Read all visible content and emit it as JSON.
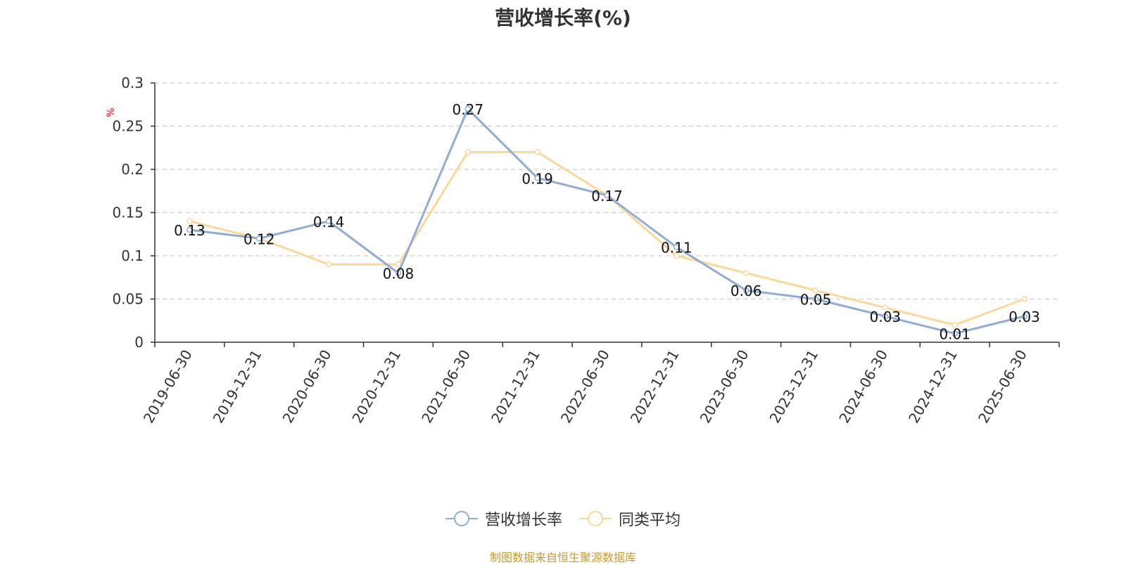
{
  "chart_data": {
    "type": "line",
    "title": "营收增长率(%)",
    "ylabel": "%",
    "ylim": [
      0,
      0.3
    ],
    "yticks": [
      "0",
      "0.05",
      "0.1",
      "0.15",
      "0.2",
      "0.25",
      "0.3"
    ],
    "grid": true,
    "categories": [
      "2019-06-30",
      "2019-12-31",
      "2020-06-30",
      "2020-12-31",
      "2021-06-30",
      "2021-12-31",
      "2022-06-30",
      "2022-12-31",
      "2023-06-30",
      "2023-12-31",
      "2024-06-30",
      "2024-12-31",
      "2025-06-30"
    ],
    "series": [
      {
        "name": "营收增长率",
        "color": "#8eacd6",
        "values": [
          0.13,
          0.12,
          0.14,
          0.08,
          0.27,
          0.19,
          0.17,
          0.11,
          0.06,
          0.05,
          0.03,
          0.01,
          0.03
        ],
        "labels": [
          "0.13",
          "0.12",
          "0.14",
          "0.08",
          "0.27",
          "0.19",
          "0.17",
          "0.11",
          "0.06",
          "0.05",
          "0.03",
          "0.01",
          "0.03"
        ]
      },
      {
        "name": "同类平均",
        "color": "#fcd898",
        "values": [
          0.14,
          0.12,
          0.09,
          0.09,
          0.22,
          0.22,
          0.17,
          0.1,
          0.08,
          0.06,
          0.04,
          0.02,
          0.05
        ]
      }
    ],
    "legend_position": "bottom",
    "source": "制图数据来自恒生聚源数据库"
  },
  "colors": {
    "axis": "#333333",
    "grid": "#cccccc",
    "ylabel": "#ff0000",
    "source": "#c89a2a"
  }
}
